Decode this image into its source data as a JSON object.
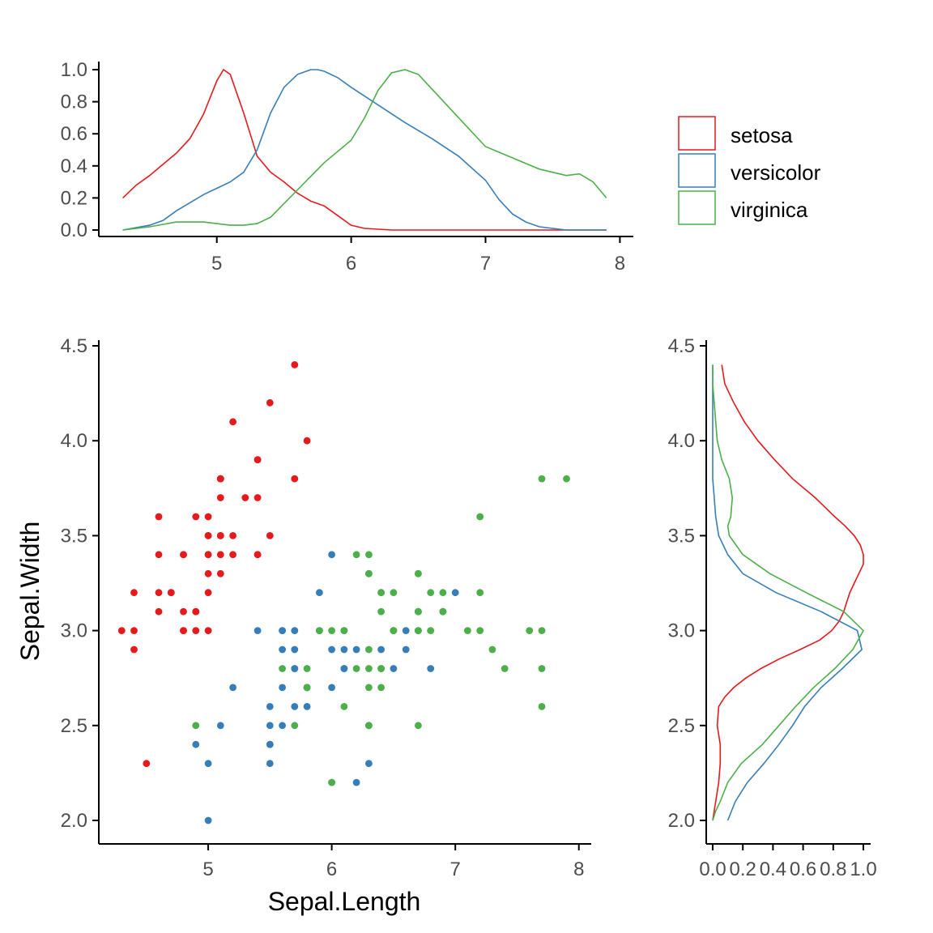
{
  "chart_data": [
    {
      "panel": "top-density",
      "type": "line",
      "x_ticks": [
        5,
        6,
        7,
        8
      ],
      "y_ticks": [
        0.0,
        0.2,
        0.4,
        0.6,
        0.8,
        1.0
      ],
      "y_tick_labels": [
        "0.0",
        "0.2",
        "0.4",
        "0.6",
        "0.8",
        "1.0"
      ],
      "xlim": [
        4.2,
        8.1
      ],
      "ylim": [
        0,
        1.0
      ],
      "series": [
        {
          "name": "setosa",
          "color": "#E41A1C",
          "x": [
            4.3,
            4.4,
            4.5,
            4.6,
            4.7,
            4.8,
            4.9,
            5.0,
            5.05,
            5.1,
            5.2,
            5.3,
            5.4,
            5.5,
            5.6,
            5.7,
            5.8,
            5.9,
            6.0,
            6.1,
            6.3,
            6.5,
            7.0,
            7.5,
            7.9
          ],
          "y": [
            0.2,
            0.28,
            0.34,
            0.41,
            0.48,
            0.57,
            0.72,
            0.93,
            1.0,
            0.97,
            0.73,
            0.46,
            0.36,
            0.3,
            0.23,
            0.18,
            0.15,
            0.09,
            0.03,
            0.01,
            0.0,
            0.0,
            0.0,
            0.0,
            0.0
          ]
        },
        {
          "name": "versicolor",
          "color": "#377EB8",
          "x": [
            4.3,
            4.5,
            4.6,
            4.7,
            4.8,
            4.9,
            5.0,
            5.1,
            5.2,
            5.3,
            5.4,
            5.5,
            5.6,
            5.7,
            5.75,
            5.8,
            5.9,
            6.0,
            6.2,
            6.4,
            6.5,
            6.6,
            6.8,
            7.0,
            7.1,
            7.2,
            7.3,
            7.4,
            7.6,
            7.9
          ],
          "y": [
            0.0,
            0.03,
            0.06,
            0.12,
            0.17,
            0.22,
            0.26,
            0.3,
            0.36,
            0.5,
            0.73,
            0.89,
            0.97,
            1.0,
            1.0,
            0.99,
            0.95,
            0.89,
            0.78,
            0.67,
            0.62,
            0.57,
            0.46,
            0.31,
            0.19,
            0.1,
            0.05,
            0.02,
            0.0,
            0.0
          ]
        },
        {
          "name": "virginica",
          "color": "#4DAF4A",
          "x": [
            4.3,
            4.5,
            4.7,
            4.8,
            4.9,
            5.0,
            5.1,
            5.2,
            5.3,
            5.4,
            5.6,
            5.8,
            6.0,
            6.1,
            6.2,
            6.3,
            6.4,
            6.5,
            6.6,
            6.7,
            6.8,
            7.0,
            7.2,
            7.4,
            7.6,
            7.7,
            7.8,
            7.9
          ],
          "y": [
            0.0,
            0.02,
            0.05,
            0.05,
            0.05,
            0.04,
            0.03,
            0.03,
            0.04,
            0.08,
            0.25,
            0.42,
            0.56,
            0.7,
            0.87,
            0.98,
            1.0,
            0.97,
            0.88,
            0.79,
            0.7,
            0.52,
            0.45,
            0.38,
            0.34,
            0.35,
            0.3,
            0.2
          ]
        }
      ]
    },
    {
      "panel": "main-scatter",
      "type": "scatter",
      "xlabel": "Sepal.Length",
      "ylabel": "Sepal.Width",
      "x_ticks": [
        5,
        6,
        7,
        8
      ],
      "y_ticks": [
        2.0,
        2.5,
        3.0,
        3.5,
        4.0,
        4.5
      ],
      "y_tick_labels": [
        "2.0",
        "2.5",
        "3.0",
        "3.5",
        "4.0",
        "4.5"
      ],
      "xlim": [
        4.2,
        8.1
      ],
      "ylim": [
        1.9,
        4.5
      ],
      "series": [
        {
          "name": "setosa",
          "color": "#E41A1C",
          "points": [
            [
              5.1,
              3.5
            ],
            [
              4.9,
              3.0
            ],
            [
              4.7,
              3.2
            ],
            [
              4.6,
              3.1
            ],
            [
              5.0,
              3.6
            ],
            [
              5.4,
              3.9
            ],
            [
              4.6,
              3.4
            ],
            [
              5.0,
              3.4
            ],
            [
              4.4,
              2.9
            ],
            [
              4.9,
              3.1
            ],
            [
              5.4,
              3.7
            ],
            [
              4.8,
              3.4
            ],
            [
              4.8,
              3.0
            ],
            [
              4.3,
              3.0
            ],
            [
              5.8,
              4.0
            ],
            [
              5.7,
              4.4
            ],
            [
              5.4,
              3.9
            ],
            [
              5.1,
              3.5
            ],
            [
              5.7,
              3.8
            ],
            [
              5.1,
              3.8
            ],
            [
              5.4,
              3.4
            ],
            [
              5.1,
              3.7
            ],
            [
              4.6,
              3.6
            ],
            [
              5.1,
              3.3
            ],
            [
              4.8,
              3.4
            ],
            [
              5.0,
              3.0
            ],
            [
              5.0,
              3.4
            ],
            [
              5.2,
              3.5
            ],
            [
              5.2,
              3.4
            ],
            [
              4.7,
              3.2
            ],
            [
              4.8,
              3.1
            ],
            [
              5.4,
              3.4
            ],
            [
              5.2,
              4.1
            ],
            [
              5.5,
              4.2
            ],
            [
              4.9,
              3.1
            ],
            [
              5.0,
              3.2
            ],
            [
              5.5,
              3.5
            ],
            [
              4.9,
              3.6
            ],
            [
              4.4,
              3.0
            ],
            [
              5.1,
              3.4
            ],
            [
              5.0,
              3.5
            ],
            [
              4.5,
              2.3
            ],
            [
              4.4,
              3.2
            ],
            [
              5.0,
              3.5
            ],
            [
              5.1,
              3.8
            ],
            [
              4.8,
              3.0
            ],
            [
              5.1,
              3.8
            ],
            [
              4.6,
              3.2
            ],
            [
              5.3,
              3.7
            ],
            [
              5.0,
              3.3
            ]
          ]
        },
        {
          "name": "versicolor",
          "color": "#377EB8",
          "points": [
            [
              7.0,
              3.2
            ],
            [
              6.4,
              3.2
            ],
            [
              6.9,
              3.1
            ],
            [
              5.5,
              2.3
            ],
            [
              6.5,
              2.8
            ],
            [
              5.7,
              2.8
            ],
            [
              6.3,
              3.3
            ],
            [
              4.9,
              2.4
            ],
            [
              6.6,
              2.9
            ],
            [
              5.2,
              2.7
            ],
            [
              5.0,
              2.0
            ],
            [
              5.9,
              3.0
            ],
            [
              6.0,
              2.2
            ],
            [
              6.1,
              2.9
            ],
            [
              5.6,
              2.9
            ],
            [
              6.7,
              3.1
            ],
            [
              5.6,
              3.0
            ],
            [
              5.8,
              2.7
            ],
            [
              6.2,
              2.2
            ],
            [
              5.6,
              2.5
            ],
            [
              5.9,
              3.2
            ],
            [
              6.1,
              2.8
            ],
            [
              6.3,
              2.5
            ],
            [
              6.1,
              2.8
            ],
            [
              6.4,
              2.9
            ],
            [
              6.6,
              3.0
            ],
            [
              6.8,
              2.8
            ],
            [
              6.7,
              3.0
            ],
            [
              6.0,
              2.9
            ],
            [
              5.7,
              2.6
            ],
            [
              5.5,
              2.4
            ],
            [
              5.5,
              2.4
            ],
            [
              5.8,
              2.7
            ],
            [
              6.0,
              2.7
            ],
            [
              5.4,
              3.0
            ],
            [
              6.0,
              3.4
            ],
            [
              6.7,
              3.1
            ],
            [
              6.3,
              2.3
            ],
            [
              5.6,
              3.0
            ],
            [
              5.5,
              2.5
            ],
            [
              5.5,
              2.6
            ],
            [
              6.1,
              3.0
            ],
            [
              5.8,
              2.6
            ],
            [
              5.0,
              2.3
            ],
            [
              5.6,
              2.7
            ],
            [
              5.7,
              3.0
            ],
            [
              5.7,
              2.9
            ],
            [
              6.2,
              2.9
            ],
            [
              5.1,
              2.5
            ],
            [
              5.7,
              2.8
            ]
          ]
        },
        {
          "name": "virginica",
          "color": "#4DAF4A",
          "points": [
            [
              6.3,
              3.3
            ],
            [
              5.8,
              2.7
            ],
            [
              7.1,
              3.0
            ],
            [
              6.3,
              2.9
            ],
            [
              6.5,
              3.0
            ],
            [
              7.6,
              3.0
            ],
            [
              4.9,
              2.5
            ],
            [
              7.3,
              2.9
            ],
            [
              6.7,
              2.5
            ],
            [
              7.2,
              3.6
            ],
            [
              6.5,
              3.2
            ],
            [
              6.4,
              2.7
            ],
            [
              6.8,
              3.0
            ],
            [
              5.7,
              2.5
            ],
            [
              5.8,
              2.8
            ],
            [
              6.4,
              3.2
            ],
            [
              6.5,
              3.0
            ],
            [
              7.7,
              3.8
            ],
            [
              7.7,
              2.6
            ],
            [
              6.0,
              2.2
            ],
            [
              6.9,
              3.2
            ],
            [
              5.6,
              2.8
            ],
            [
              7.7,
              2.8
            ],
            [
              6.3,
              2.7
            ],
            [
              6.7,
              3.3
            ],
            [
              7.2,
              3.2
            ],
            [
              6.2,
              2.8
            ],
            [
              6.1,
              3.0
            ],
            [
              6.4,
              2.8
            ],
            [
              7.2,
              3.0
            ],
            [
              7.4,
              2.8
            ],
            [
              7.9,
              3.8
            ],
            [
              6.4,
              2.8
            ],
            [
              6.3,
              2.8
            ],
            [
              6.1,
              2.6
            ],
            [
              7.7,
              3.0
            ],
            [
              6.3,
              3.4
            ],
            [
              6.4,
              3.1
            ],
            [
              6.0,
              3.0
            ],
            [
              6.9,
              3.1
            ],
            [
              6.7,
              3.1
            ],
            [
              6.9,
              3.1
            ],
            [
              5.8,
              2.7
            ],
            [
              6.8,
              3.2
            ],
            [
              6.7,
              3.3
            ],
            [
              6.7,
              3.0
            ],
            [
              6.3,
              2.5
            ],
            [
              6.5,
              3.0
            ],
            [
              6.2,
              3.4
            ],
            [
              5.9,
              3.0
            ]
          ]
        }
      ]
    },
    {
      "panel": "right-density",
      "type": "line",
      "x_ticks": [
        0.0,
        0.2,
        0.4,
        0.6,
        0.8,
        1.0
      ],
      "x_tick_labels": [
        "0.0",
        "0.2",
        "0.4",
        "0.6",
        "0.8",
        "1.0"
      ],
      "y_ticks": [
        2.0,
        2.5,
        3.0,
        3.5,
        4.0,
        4.5
      ],
      "y_tick_labels": [
        "2.0",
        "2.5",
        "3.0",
        "3.5",
        "4.0",
        "4.5"
      ],
      "xlim": [
        0,
        1.0
      ],
      "ylim": [
        1.9,
        4.5
      ],
      "series": [
        {
          "name": "setosa",
          "color": "#E41A1C",
          "y": [
            2.0,
            2.1,
            2.2,
            2.3,
            2.4,
            2.5,
            2.6,
            2.65,
            2.7,
            2.75,
            2.8,
            2.85,
            2.9,
            2.95,
            3.0,
            3.05,
            3.1,
            3.15,
            3.2,
            3.25,
            3.3,
            3.35,
            3.4,
            3.45,
            3.5,
            3.55,
            3.6,
            3.7,
            3.8,
            3.9,
            4.0,
            4.1,
            4.2,
            4.3,
            4.4
          ],
          "x": [
            0.0,
            0.02,
            0.04,
            0.05,
            0.05,
            0.03,
            0.04,
            0.08,
            0.14,
            0.22,
            0.32,
            0.44,
            0.58,
            0.71,
            0.79,
            0.84,
            0.87,
            0.89,
            0.91,
            0.94,
            0.97,
            1.0,
            1.0,
            0.98,
            0.94,
            0.88,
            0.81,
            0.68,
            0.53,
            0.41,
            0.3,
            0.21,
            0.14,
            0.08,
            0.06
          ]
        },
        {
          "name": "versicolor",
          "color": "#377EB8",
          "y": [
            2.0,
            2.1,
            2.2,
            2.3,
            2.4,
            2.5,
            2.6,
            2.7,
            2.8,
            2.9,
            3.0,
            3.1,
            3.2,
            3.3,
            3.4,
            3.5,
            3.6,
            3.7,
            3.8,
            3.9,
            4.0,
            4.2,
            4.4
          ],
          "x": [
            0.1,
            0.15,
            0.23,
            0.34,
            0.44,
            0.53,
            0.61,
            0.72,
            0.86,
            0.99,
            0.96,
            0.72,
            0.42,
            0.2,
            0.1,
            0.04,
            0.02,
            0.01,
            0.0,
            0.0,
            0.0,
            0.0,
            0.0
          ]
        },
        {
          "name": "virginica",
          "color": "#4DAF4A",
          "y": [
            2.0,
            2.05,
            2.1,
            2.2,
            2.3,
            2.4,
            2.5,
            2.6,
            2.7,
            2.8,
            2.9,
            3.0,
            3.1,
            3.2,
            3.3,
            3.4,
            3.5,
            3.55,
            3.6,
            3.7,
            3.8,
            3.9,
            4.0,
            4.1,
            4.2,
            4.3,
            4.4
          ],
          "x": [
            0.0,
            0.02,
            0.05,
            0.1,
            0.19,
            0.33,
            0.44,
            0.55,
            0.67,
            0.81,
            0.93,
            1.0,
            0.87,
            0.62,
            0.38,
            0.2,
            0.11,
            0.1,
            0.12,
            0.13,
            0.11,
            0.06,
            0.03,
            0.02,
            0.01,
            0.0,
            0.0
          ]
        }
      ]
    }
  ],
  "legend": {
    "items": [
      {
        "label": "setosa",
        "color": "#E41A1C"
      },
      {
        "label": "versicolor",
        "color": "#377EB8"
      },
      {
        "label": "virginica",
        "color": "#4DAF4A"
      }
    ]
  }
}
